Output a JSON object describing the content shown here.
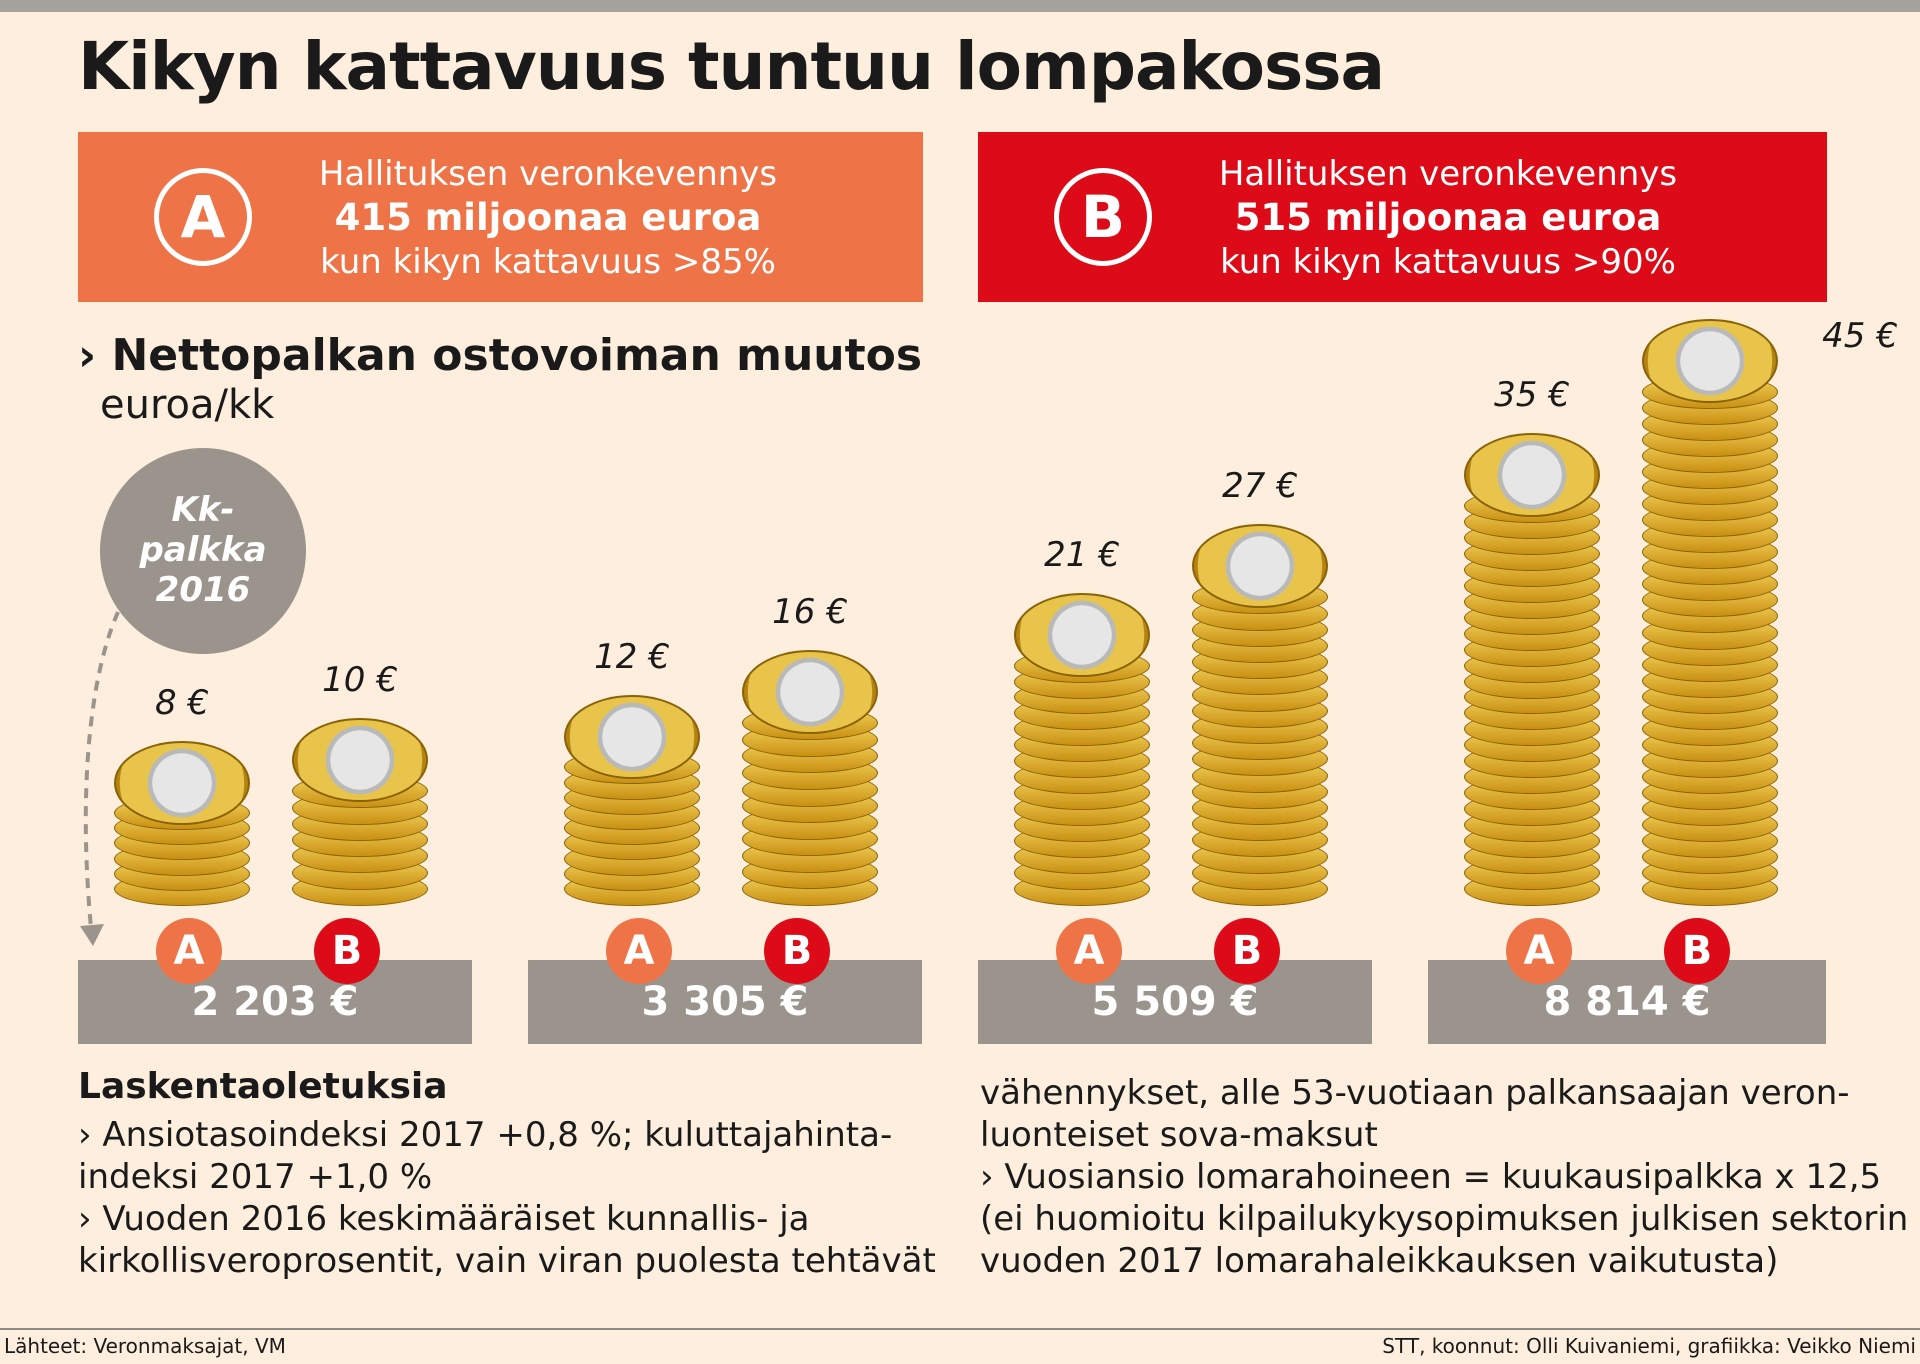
{
  "title": "Kikyn kattavuus tuntuu lompakossa",
  "box_a": {
    "letter": "A",
    "line1": "Hallituksen veronkevennys",
    "line2": "415 miljoonaa euroa",
    "line3": "kun kikyn kattavuus >85%",
    "color": "#ee7448"
  },
  "box_b": {
    "letter": "B",
    "line1": "Hallituksen veronkevennys",
    "line2": "515 miljoonaa euroa",
    "line3": "kun kikyn kattavuus >90%",
    "color": "#dd0a17"
  },
  "subtitle": "› Nettopalkan ostovoiman muutos",
  "unit": "euroa/kk",
  "kk_label": [
    "Kk-",
    "palkka",
    "2016"
  ],
  "chart_data": {
    "type": "bar",
    "categories": [
      "2 203 €",
      "3 305 €",
      "5 509 €",
      "8 814 €"
    ],
    "series": [
      {
        "name": "A",
        "values": [
          8,
          12,
          21,
          35
        ],
        "labels": [
          "8 €",
          "12 €",
          "21 €",
          "35 €"
        ],
        "color": "#ee7448"
      },
      {
        "name": "B",
        "values": [
          10,
          16,
          27,
          45
        ],
        "labels": [
          "10 €",
          "16 €",
          "27 €",
          "45 €"
        ],
        "color": "#dd0a17"
      }
    ],
    "xlabel": "",
    "ylabel": ""
  },
  "notes": {
    "heading": "Laskentaoletuksia",
    "left": [
      "› Ansiotasoindeksi 2017 +0,8 %; kuluttajahinta-",
      "indeksi 2017 +1,0 %",
      "› Vuoden 2016 keskimääräiset kunnallis- ja",
      "kirkollisveroprosentit, vain viran puolesta tehtävät"
    ],
    "right": [
      "vähennykset, alle 53-vuotiaan palkansaajan veron-",
      "luonteiset sova-maksut",
      "› Vuosiansio lomarahoineen = kuukausipalkka x 12,5",
      "(ei huomioitu kilpailukykysopimuksen julkisen sektorin",
      "vuoden 2017 lomarahaleikkauksen vaikutusta)"
    ]
  },
  "source": "Lähteet: Veronmaksajat,  VM",
  "credit": "STT, koonnut: Olli Kuivaniemi, grafiikka: Veikko Niemi"
}
